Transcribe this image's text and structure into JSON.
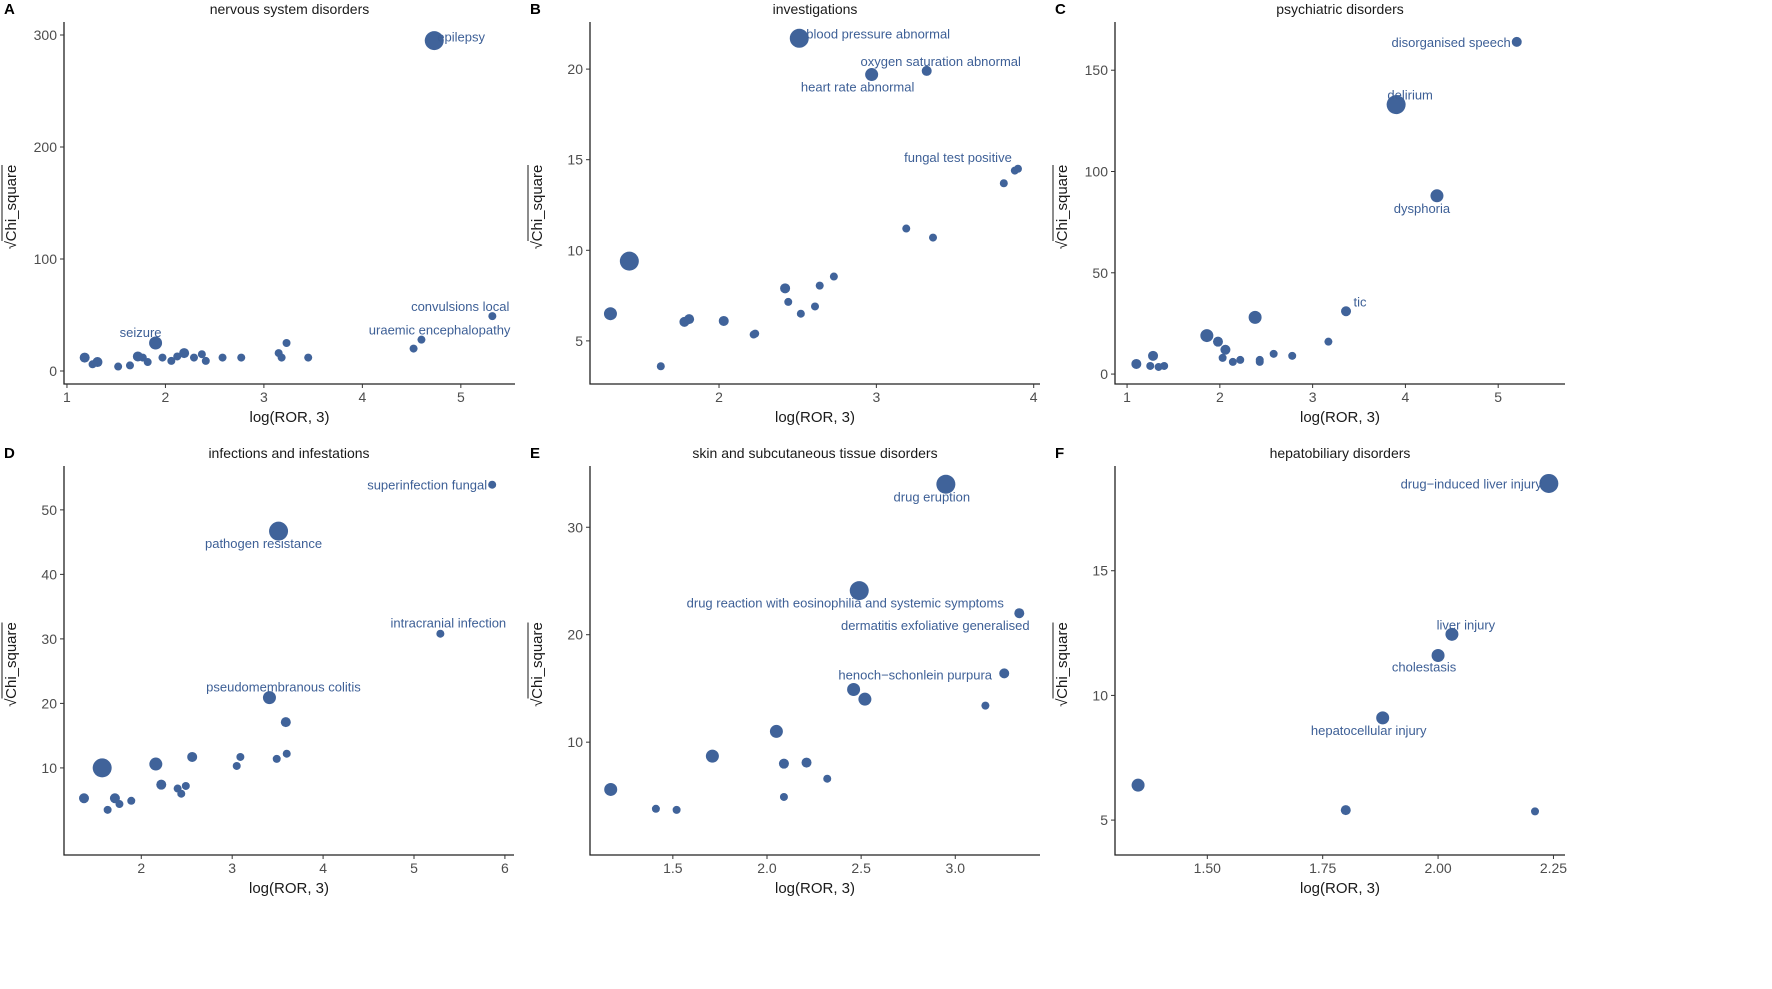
{
  "chart_data": [
    {
      "panel": "A",
      "type": "scatter",
      "title": "nervous system disorders",
      "xlabel": "log(ROR, 3)",
      "ylabel": "Chi_square",
      "ylabel_prefix": "√",
      "xlim": [
        0.97,
        5.55
      ],
      "ylim": [
        -11.6,
        311.6
      ],
      "xticks": [
        1,
        2,
        3,
        4,
        5
      ],
      "xtick_labels": [
        "1",
        "2",
        "3",
        "4",
        "5"
      ],
      "yticks": [
        0,
        100,
        200,
        300
      ],
      "ytick_labels": [
        "0",
        "100",
        "200",
        "300"
      ],
      "points": [
        {
          "x": 4.73,
          "y": 295,
          "size": 4,
          "label": "epilepsy"
        },
        {
          "x": 5.32,
          "y": 49,
          "size": 1,
          "label": "convulsions local"
        },
        {
          "x": 4.6,
          "y": 28,
          "size": 1,
          "label": "uraemic encephalopathy"
        },
        {
          "x": 4.52,
          "y": 20,
          "size": 1
        },
        {
          "x": 1.9,
          "y": 25,
          "size": 3,
          "label": "seizure"
        },
        {
          "x": 1.18,
          "y": 12,
          "size": 2
        },
        {
          "x": 1.26,
          "y": 6,
          "size": 1
        },
        {
          "x": 1.31,
          "y": 8,
          "size": 2
        },
        {
          "x": 1.52,
          "y": 4,
          "size": 1
        },
        {
          "x": 1.64,
          "y": 5,
          "size": 1
        },
        {
          "x": 1.72,
          "y": 13,
          "size": 2
        },
        {
          "x": 1.77,
          "y": 12,
          "size": 1
        },
        {
          "x": 1.82,
          "y": 8,
          "size": 1
        },
        {
          "x": 1.97,
          "y": 12,
          "size": 1
        },
        {
          "x": 2.06,
          "y": 9,
          "size": 1
        },
        {
          "x": 2.12,
          "y": 13,
          "size": 1
        },
        {
          "x": 2.19,
          "y": 16,
          "size": 2
        },
        {
          "x": 2.29,
          "y": 12,
          "size": 1
        },
        {
          "x": 2.37,
          "y": 15,
          "size": 1
        },
        {
          "x": 2.41,
          "y": 9,
          "size": 1
        },
        {
          "x": 2.58,
          "y": 12,
          "size": 1
        },
        {
          "x": 2.77,
          "y": 12,
          "size": 1
        },
        {
          "x": 3.15,
          "y": 16,
          "size": 1
        },
        {
          "x": 3.18,
          "y": 12,
          "size": 1
        },
        {
          "x": 3.23,
          "y": 25,
          "size": 1
        },
        {
          "x": 3.45,
          "y": 12,
          "size": 1
        }
      ]
    },
    {
      "panel": "B",
      "type": "scatter",
      "title": "investigations",
      "xlabel": "log(ROR, 3)",
      "ylabel": "Chi_square",
      "ylabel_prefix": "√",
      "xlim": [
        1.18,
        4.04
      ],
      "ylim": [
        2.62,
        22.6
      ],
      "xticks": [
        2,
        3,
        4
      ],
      "xtick_labels": [
        "2",
        "3",
        "4"
      ],
      "yticks": [
        5,
        10,
        15,
        20
      ],
      "ytick_labels": [
        "5",
        "10",
        "15",
        "20"
      ],
      "points": [
        {
          "x": 2.51,
          "y": 21.7,
          "size": 4,
          "label": "blood pressure abnormal"
        },
        {
          "x": 3.32,
          "y": 19.9,
          "size": 2,
          "label": "oxygen saturation abnormal"
        },
        {
          "x": 2.97,
          "y": 19.7,
          "size": 3,
          "label": "heart rate abnormal"
        },
        {
          "x": 3.9,
          "y": 14.5,
          "size": 1,
          "label": "fungal test positive"
        },
        {
          "x": 3.88,
          "y": 14.4,
          "size": 1
        },
        {
          "x": 3.81,
          "y": 13.7,
          "size": 1
        },
        {
          "x": 1.43,
          "y": 9.4,
          "size": 4
        },
        {
          "x": 1.31,
          "y": 6.5,
          "size": 3
        },
        {
          "x": 1.63,
          "y": 3.6,
          "size": 1
        },
        {
          "x": 1.78,
          "y": 6.05,
          "size": 2
        },
        {
          "x": 1.81,
          "y": 6.2,
          "size": 2
        },
        {
          "x": 2.03,
          "y": 6.1,
          "size": 2
        },
        {
          "x": 2.22,
          "y": 5.35,
          "size": 1
        },
        {
          "x": 2.23,
          "y": 5.4,
          "size": 1
        },
        {
          "x": 2.42,
          "y": 7.9,
          "size": 2
        },
        {
          "x": 2.44,
          "y": 7.15,
          "size": 1
        },
        {
          "x": 2.52,
          "y": 6.5,
          "size": 1
        },
        {
          "x": 2.61,
          "y": 6.9,
          "size": 1
        },
        {
          "x": 2.64,
          "y": 8.05,
          "size": 1
        },
        {
          "x": 2.73,
          "y": 8.55,
          "size": 1
        },
        {
          "x": 3.19,
          "y": 11.2,
          "size": 1
        },
        {
          "x": 3.36,
          "y": 10.7,
          "size": 1
        }
      ]
    },
    {
      "panel": "C",
      "type": "scatter",
      "title": "psychiatric disorders",
      "xlabel": "log(ROR, 3)",
      "ylabel": "Chi_square",
      "ylabel_prefix": "√",
      "xlim": [
        0.87,
        5.72
      ],
      "ylim": [
        -4.9,
        173.8
      ],
      "xticks": [
        1,
        2,
        3,
        4,
        5
      ],
      "xtick_labels": [
        "1",
        "2",
        "3",
        "4",
        "5"
      ],
      "yticks": [
        0,
        50,
        100,
        150
      ],
      "ytick_labels": [
        "0",
        "50",
        "100",
        "150"
      ],
      "points": [
        {
          "x": 5.2,
          "y": 164,
          "size": 2,
          "label": "disorganised speech"
        },
        {
          "x": 3.9,
          "y": 133,
          "size": 4,
          "label": "delirium"
        },
        {
          "x": 4.34,
          "y": 88,
          "size": 3,
          "label": "dysphoria"
        },
        {
          "x": 3.36,
          "y": 31,
          "size": 2,
          "label": "tic"
        },
        {
          "x": 3.17,
          "y": 16,
          "size": 1
        },
        {
          "x": 2.38,
          "y": 28,
          "size": 3
        },
        {
          "x": 1.86,
          "y": 19,
          "size": 3
        },
        {
          "x": 1.98,
          "y": 16,
          "size": 2
        },
        {
          "x": 2.06,
          "y": 12,
          "size": 2
        },
        {
          "x": 1.1,
          "y": 5,
          "size": 2
        },
        {
          "x": 1.28,
          "y": 9,
          "size": 2
        },
        {
          "x": 1.25,
          "y": 4,
          "size": 1
        },
        {
          "x": 1.34,
          "y": 3.5,
          "size": 1
        },
        {
          "x": 1.4,
          "y": 4,
          "size": 1
        },
        {
          "x": 2.03,
          "y": 8,
          "size": 1
        },
        {
          "x": 2.14,
          "y": 6,
          "size": 1
        },
        {
          "x": 2.22,
          "y": 7,
          "size": 1
        },
        {
          "x": 2.43,
          "y": 6,
          "size": 1
        },
        {
          "x": 2.43,
          "y": 7,
          "size": 1
        },
        {
          "x": 2.58,
          "y": 10,
          "size": 1
        },
        {
          "x": 2.78,
          "y": 9,
          "size": 1
        }
      ]
    },
    {
      "panel": "D",
      "type": "scatter",
      "title": "infections and infestations",
      "xlabel": "log(ROR, 3)",
      "ylabel": "Chi_square",
      "ylabel_prefix": "√",
      "xlim": [
        1.15,
        6.1
      ],
      "ylim": [
        -3.5,
        56.8
      ],
      "xticks": [
        2,
        3,
        4,
        5,
        6
      ],
      "xtick_labels": [
        "2",
        "3",
        "4",
        "5",
        "6"
      ],
      "yticks": [
        10,
        20,
        30,
        40,
        50
      ],
      "ytick_labels": [
        "10",
        "20",
        "30",
        "40",
        "50"
      ],
      "points": [
        {
          "x": 5.86,
          "y": 53.9,
          "size": 1,
          "label": "superinfection fungal"
        },
        {
          "x": 3.51,
          "y": 46.7,
          "size": 4,
          "label": "pathogen resistance"
        },
        {
          "x": 5.29,
          "y": 30.8,
          "size": 1,
          "label": "intracranial infection"
        },
        {
          "x": 3.41,
          "y": 20.9,
          "size": 3,
          "label": "pseudomembranous colitis"
        },
        {
          "x": 3.59,
          "y": 17.1,
          "size": 2
        },
        {
          "x": 3.6,
          "y": 12.2,
          "size": 1
        },
        {
          "x": 3.49,
          "y": 11.4,
          "size": 1
        },
        {
          "x": 2.56,
          "y": 11.7,
          "size": 2
        },
        {
          "x": 3.09,
          "y": 11.7,
          "size": 1
        },
        {
          "x": 3.05,
          "y": 10.3,
          "size": 1
        },
        {
          "x": 2.16,
          "y": 10.6,
          "size": 3
        },
        {
          "x": 1.57,
          "y": 10,
          "size": 4
        },
        {
          "x": 1.37,
          "y": 5.3,
          "size": 2
        },
        {
          "x": 1.71,
          "y": 5.3,
          "size": 2
        },
        {
          "x": 1.76,
          "y": 4.4,
          "size": 1
        },
        {
          "x": 1.89,
          "y": 4.9,
          "size": 1
        },
        {
          "x": 1.63,
          "y": 3.5,
          "size": 1
        },
        {
          "x": 2.22,
          "y": 7.4,
          "size": 2
        },
        {
          "x": 2.4,
          "y": 6.8,
          "size": 1
        },
        {
          "x": 2.44,
          "y": 6.0,
          "size": 1
        },
        {
          "x": 2.49,
          "y": 7.2,
          "size": 1
        }
      ]
    },
    {
      "panel": "E",
      "type": "scatter",
      "title": "skin and subcutaneous tissue disorders",
      "xlabel": "log(ROR, 3)",
      "ylabel": "Chi_square",
      "ylabel_prefix": "√",
      "xlim": [
        1.06,
        3.45
      ],
      "ylim": [
        -0.5,
        35.7
      ],
      "xticks": [
        1.5,
        2.0,
        2.5,
        3.0
      ],
      "xtick_labels": [
        "1.5",
        "2.0",
        "2.5",
        "3.0"
      ],
      "yticks": [
        10,
        20,
        30
      ],
      "ytick_labels": [
        "10",
        "20",
        "30"
      ],
      "points": [
        {
          "x": 2.95,
          "y": 34,
          "size": 4,
          "label": "drug eruption"
        },
        {
          "x": 2.49,
          "y": 24.1,
          "size": 4,
          "label": "drug reaction with eosinophilia and systemic symptoms"
        },
        {
          "x": 3.34,
          "y": 22,
          "size": 2,
          "label": "dermatitis exfoliative generalised"
        },
        {
          "x": 3.26,
          "y": 16.4,
          "size": 2,
          "label": "henoch−schonlein purpura"
        },
        {
          "x": 2.46,
          "y": 14.9,
          "size": 3
        },
        {
          "x": 2.52,
          "y": 14.0,
          "size": 3
        },
        {
          "x": 3.16,
          "y": 13.4,
          "size": 1
        },
        {
          "x": 2.05,
          "y": 11,
          "size": 3
        },
        {
          "x": 1.71,
          "y": 8.7,
          "size": 3
        },
        {
          "x": 2.09,
          "y": 8,
          "size": 2
        },
        {
          "x": 2.21,
          "y": 8.1,
          "size": 2
        },
        {
          "x": 2.32,
          "y": 6.6,
          "size": 1
        },
        {
          "x": 2.09,
          "y": 4.9,
          "size": 1
        },
        {
          "x": 1.17,
          "y": 5.6,
          "size": 3
        },
        {
          "x": 1.41,
          "y": 3.8,
          "size": 1
        },
        {
          "x": 1.52,
          "y": 3.7,
          "size": 1
        }
      ]
    },
    {
      "panel": "F",
      "type": "scatter",
      "title": "hepatobiliary disorders",
      "xlabel": "log(ROR, 3)",
      "ylabel": "Chi_square",
      "ylabel_prefix": "√",
      "xlim": [
        1.3,
        2.275
      ],
      "ylim": [
        3.6,
        19.2
      ],
      "xticks": [
        1.5,
        1.75,
        2.0,
        2.25
      ],
      "xtick_labels": [
        "1.50",
        "1.75",
        "2.00",
        "2.25"
      ],
      "yticks": [
        5,
        10,
        15
      ],
      "ytick_labels": [
        "5",
        "10",
        "15"
      ],
      "points": [
        {
          "x": 2.24,
          "y": 18.5,
          "size": 4,
          "label": "drug−induced liver injury"
        },
        {
          "x": 2.03,
          "y": 12.45,
          "size": 3,
          "label": "liver injury"
        },
        {
          "x": 2.0,
          "y": 11.6,
          "size": 3,
          "label": "cholestasis"
        },
        {
          "x": 1.88,
          "y": 9.1,
          "size": 3,
          "label": "hepatocellular injury"
        },
        {
          "x": 1.35,
          "y": 6.4,
          "size": 3
        },
        {
          "x": 1.8,
          "y": 5.4,
          "size": 2
        },
        {
          "x": 2.21,
          "y": 5.35,
          "size": 1
        }
      ]
    }
  ],
  "colors": {
    "point": "#40639a",
    "label": "#3d5f96"
  }
}
